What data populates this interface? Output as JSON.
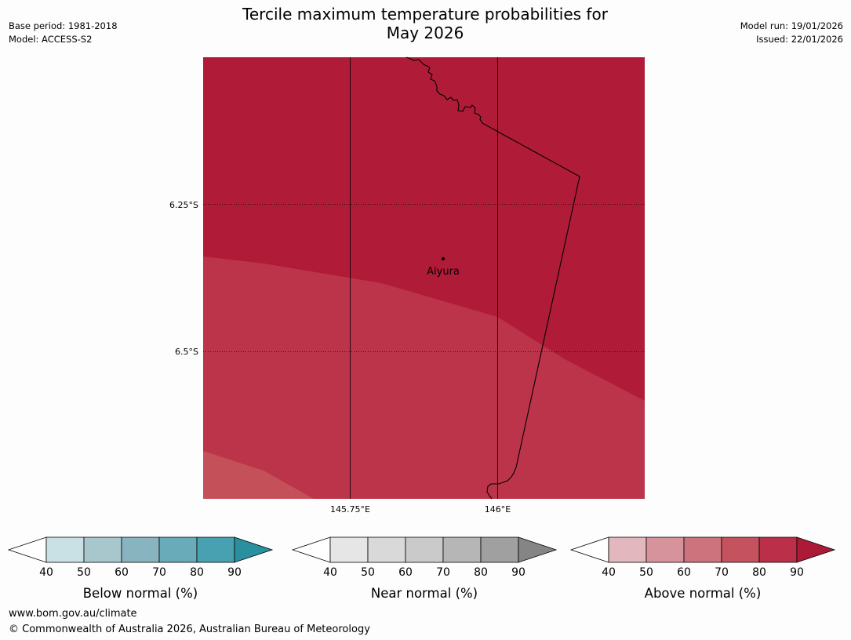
{
  "title": {
    "line1": "Tercile maximum temperature probabilities for",
    "line2": "May 2026"
  },
  "meta": {
    "base_period": "Base period: 1981-2018",
    "model": "Model: ACCESS-S2",
    "model_run": "Model run: 19/01/2026",
    "issued": "Issued: 22/01/2026"
  },
  "map": {
    "latitude_labels": [
      "6.25°S",
      "6.5°S"
    ],
    "longitude_labels": [
      "145.75°E",
      "146°E"
    ],
    "place": "Aiyura",
    "colors": {
      "zone_80_90": "#b01c38",
      "zone_70_80": "#bc344a",
      "zone_60_70": "#c4505a",
      "border": "#000000"
    }
  },
  "legends": [
    {
      "label": "Below normal (%)",
      "ticks": [
        "40",
        "50",
        "60",
        "70",
        "80",
        "90"
      ],
      "colors": [
        "#ffffff",
        "#c9e0e5",
        "#a8c7cc",
        "#88b4c0",
        "#6aabba",
        "#48a1b0",
        "#2a8f9e"
      ]
    },
    {
      "label": "Near normal (%)",
      "ticks": [
        "40",
        "50",
        "60",
        "70",
        "80",
        "90"
      ],
      "colors": [
        "#ffffff",
        "#e6e6e6",
        "#d9d9d9",
        "#cacaca",
        "#b6b6b6",
        "#a0a0a0",
        "#858585"
      ]
    },
    {
      "label": "Above normal (%)",
      "ticks": [
        "40",
        "50",
        "60",
        "70",
        "80",
        "90"
      ],
      "colors": [
        "#ffffff",
        "#e2b7bd",
        "#d7939c",
        "#cc737d",
        "#c4535f",
        "#bb2f48",
        "#ad1a37"
      ]
    }
  ],
  "footer": {
    "url": "www.bom.gov.au/climate",
    "copyright": "© Commonwealth of Australia 2026, Australian Bureau of Meteorology"
  }
}
